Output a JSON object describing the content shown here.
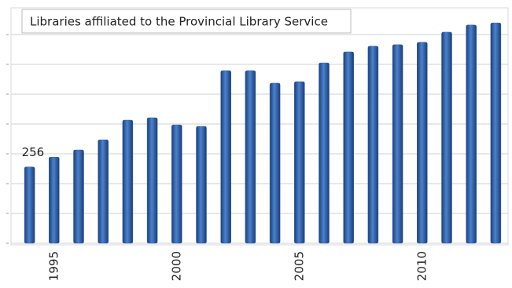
{
  "chart_data": {
    "type": "bar",
    "title": "Libraries affiliated to the Provincial Library Service",
    "categories": [
      null,
      "1995",
      null,
      null,
      null,
      null,
      "2000",
      null,
      null,
      null,
      null,
      "2005",
      null,
      null,
      null,
      null,
      "2010",
      null,
      null,
      null
    ],
    "values": [
      256,
      289,
      313,
      347,
      413,
      421,
      397,
      392,
      579,
      579,
      537,
      542,
      605,
      642,
      661,
      666,
      674,
      708,
      732,
      739
    ],
    "value_labels": [
      "256",
      null,
      null,
      null,
      null,
      null,
      null,
      null,
      null,
      null,
      null,
      null,
      null,
      null,
      null,
      null,
      null,
      null,
      null,
      null
    ],
    "color": "#2f62ad",
    "ylim": [
      0,
      750
    ],
    "yticks": [
      0,
      100,
      200,
      300,
      400,
      500,
      600,
      700
    ],
    "grid": true
  }
}
